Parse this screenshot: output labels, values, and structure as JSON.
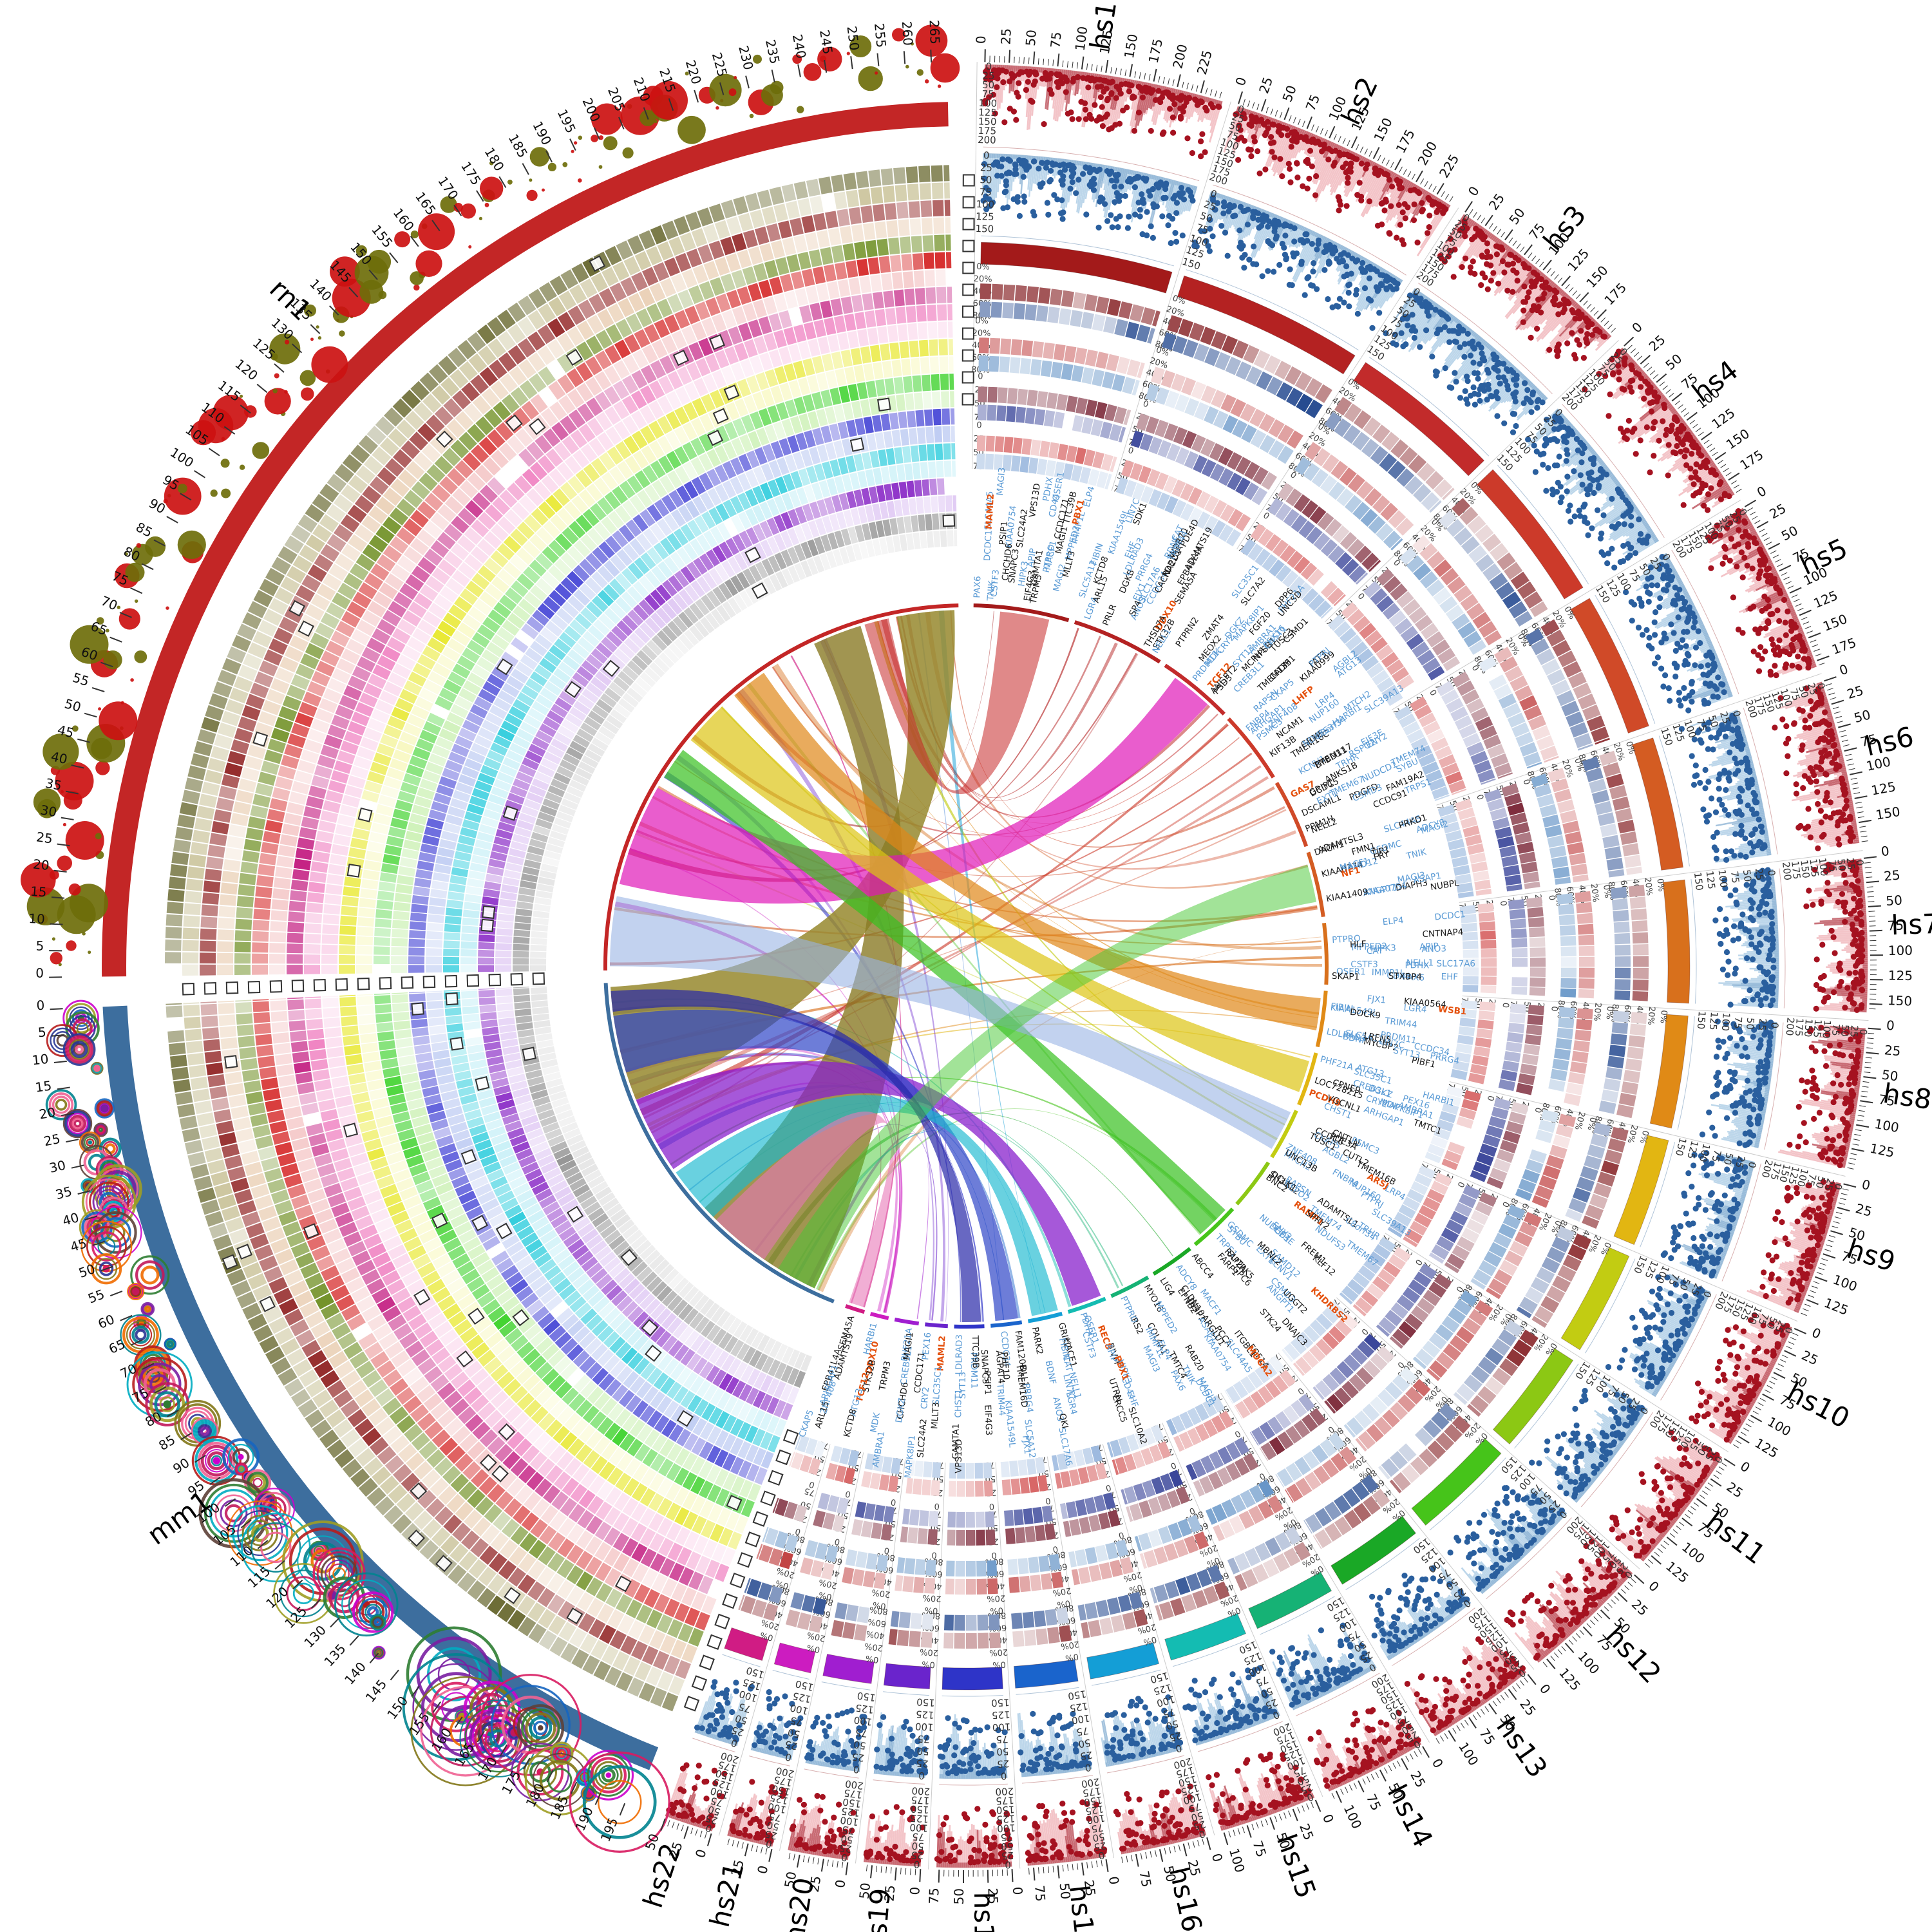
{
  "chart_data": {
    "type": "circos",
    "seed": 20,
    "ideograms": [
      {
        "id": "hs1",
        "label": "hs1",
        "group": "human",
        "length_mb": 249,
        "color": "#a31a1a"
      },
      {
        "id": "hs2",
        "label": "hs2",
        "group": "human",
        "length_mb": 243,
        "color": "#b42222"
      },
      {
        "id": "hs3",
        "label": "hs3",
        "group": "human",
        "length_mb": 198,
        "color": "#c22b2b"
      },
      {
        "id": "hs4",
        "label": "hs4",
        "group": "human",
        "length_mb": 191,
        "color": "#cc3a2a"
      },
      {
        "id": "hs5",
        "label": "hs5",
        "group": "human",
        "length_mb": 181,
        "color": "#d04a28"
      },
      {
        "id": "hs6",
        "label": "hs6",
        "group": "human",
        "length_mb": 171,
        "color": "#d45c22"
      },
      {
        "id": "hs7",
        "label": "hs7",
        "group": "human",
        "length_mb": 159,
        "color": "#d8701c"
      },
      {
        "id": "hs8",
        "label": "hs8",
        "group": "human",
        "length_mb": 146,
        "color": "#e08a16"
      },
      {
        "id": "hs9",
        "label": "hs9",
        "group": "human",
        "length_mb": 141,
        "color": "#e2b612"
      },
      {
        "id": "hs10",
        "label": "hs10",
        "group": "human",
        "length_mb": 136,
        "color": "#c2cc12"
      },
      {
        "id": "hs11",
        "label": "hs11",
        "group": "human",
        "length_mb": 135,
        "color": "#8cc814"
      },
      {
        "id": "hs12",
        "label": "hs12",
        "group": "human",
        "length_mb": 134,
        "color": "#46c41a"
      },
      {
        "id": "hs13",
        "label": "hs13",
        "group": "human",
        "length_mb": 115,
        "color": "#1aa826"
      },
      {
        "id": "hs14",
        "label": "hs14",
        "group": "human",
        "length_mb": 107,
        "color": "#16b275"
      },
      {
        "id": "hs15",
        "label": "hs15",
        "group": "human",
        "length_mb": 102,
        "color": "#14bcb2"
      },
      {
        "id": "hs16",
        "label": "hs16",
        "group": "human",
        "length_mb": 90,
        "color": "#149ed6"
      },
      {
        "id": "hs17",
        "label": "hs17",
        "group": "human",
        "length_mb": 81,
        "color": "#1a64cc"
      },
      {
        "id": "hs18",
        "label": "hs18",
        "group": "human",
        "length_mb": 78,
        "color": "#2e34c8"
      },
      {
        "id": "hs19",
        "label": "hs19",
        "group": "human",
        "length_mb": 59,
        "color": "#6a24cc"
      },
      {
        "id": "hs20",
        "label": "hs20",
        "group": "human",
        "length_mb": 63,
        "color": "#a01ed0"
      },
      {
        "id": "hs21",
        "label": "hs21",
        "group": "human",
        "length_mb": 48,
        "color": "#cc1cc0"
      },
      {
        "id": "hs22",
        "label": "hs22",
        "group": "human",
        "length_mb": 51,
        "color": "#d01c84"
      },
      {
        "id": "mm1",
        "label": "mm1",
        "group": "mouse",
        "length_mb": 197,
        "color": "#3d6e9e",
        "reversed": true
      },
      {
        "id": "rn1",
        "label": "rn1",
        "group": "rat",
        "length_mb": 268,
        "color": "#c32626"
      }
    ],
    "ticks": {
      "human_major_mb": 25,
      "human_minor_mb": 5,
      "rodent_major_mb": 5
    },
    "human_tracks": {
      "outer": {
        "dot_color": "#a51220",
        "hist_color": "#f3c4c8",
        "band_color": "#c05a64",
        "axis": [
          "0",
          "25",
          "50",
          "75",
          "100",
          "125",
          "150",
          "175",
          "200"
        ]
      },
      "inner": {
        "dot_color": "#2a5f9e",
        "hist_color": "#bcd6ea",
        "band_color": "#8fb4d4",
        "axis": [
          "0",
          "25",
          "50",
          "75",
          "100",
          "125",
          "150"
        ]
      },
      "percent_axis": [
        "0%",
        "20%",
        "40%",
        "60%",
        "80%"
      ],
      "value_axis": [
        "0",
        "25",
        "50",
        "75"
      ],
      "heat_row_colors": [
        "#7a0c10",
        "#123a86",
        "#c04040",
        "#5d8fc4",
        "#6d1022",
        "#25328f",
        "#d25050",
        "#8fb0da"
      ]
    },
    "rodent_tracks": {
      "bubble_colors": [
        "#6e6e0a",
        "#cc1111"
      ],
      "ring_set_colors": [
        "#7a1fa2",
        "#c2185b",
        "#2e7d32",
        "#827717",
        "#1565c0",
        "#00838f",
        "#ef6c00",
        "#d81b60",
        "#283593",
        "#b71c1c",
        "#9e9d24",
        "#f06292",
        "#5d4037",
        "#00acc1",
        "#cc00cc"
      ],
      "ring_palette": [
        "#5c5c1e",
        "#c9c298",
        "#8c1a1a",
        "#e9cdb1",
        "#6f8f23",
        "#d42222",
        "#f4c6c6",
        "#c2187e",
        "#ef7fc0",
        "#fad4ea",
        "#e6e61e",
        "#f8f8c2",
        "#34d021",
        "#caf0b2",
        "#2b2bd0",
        "#bccaf2",
        "#1fc9da",
        "#c2eef6",
        "#8522c4",
        "#dcc2f2",
        "#8f8f8f",
        "#e2e2e2"
      ]
    },
    "gene_labels": {
      "blue": [
        "MACF1",
        "KIAA0754",
        "SLC44A5",
        "MAGI3",
        "TNIK",
        "MAGI2",
        "PTPRO",
        "MPPED2",
        "IMMP1L",
        "ELP4",
        "PAX6",
        "DCDC1",
        "QSER1",
        "CSTF3",
        "HIPK3",
        "CD44",
        "PDHX",
        "APIP",
        "EHF",
        "CAT",
        "NELL1",
        "ANO3",
        "SLC17A6",
        "FIBIN",
        "BDNF",
        "LIN7C",
        "LGR4",
        "CCDC34",
        "PRRG4",
        "KIAA1549L",
        "SLC5A12",
        "FJX1",
        "TRIM44",
        "LDLRAD3",
        "PRDM11",
        "SYT13",
        "CHST1",
        "SLC35C1",
        "CRY2",
        "MAPK8IP1",
        "PEX16",
        "PHF21A",
        "CREB3L1",
        "DGKZ",
        "MDK",
        "AMBRA1",
        "HARBI1",
        "ATG13",
        "ARHGAP1",
        "ZNF408",
        "CKAP5",
        "LRP4",
        "MTCH2",
        "AGBL2",
        "FNBP4",
        "NUP160",
        "PTPRJ",
        "SLC39A13",
        "PSMC3",
        "RAPSN",
        "NDUFS3",
        "C8orf34",
        "TMEM67",
        "RSPO2",
        "EIF3E",
        "TMEM74",
        "TRHR",
        "NUDCD1",
        "ENY2",
        "SYBU",
        "KCNV1",
        "CSMD3",
        "TRPS1",
        "EXT1",
        "SAMD12",
        "ANGPT1",
        "GSDMC",
        "ASAP1",
        "ADCY8"
      ],
      "black": [
        "EIF4G3",
        "CAMTA1",
        "VPS13D",
        "TTC39B",
        "SNAPC3",
        "PSIP1",
        "CCDC171",
        "MLLT3",
        "SLC24A2",
        "TRPM3",
        "CHCHD6",
        "MAGI1",
        "STK32B",
        "KCTD8",
        "SEMA5A",
        "ADAMTS19",
        "EPB41L4A",
        "ARL15",
        "WDR70",
        "PDE4D",
        "PRLR",
        "CACNA2D1",
        "PDE10A",
        "SDK1",
        "THSD7A",
        "SP4",
        "DGKB",
        "MEOX2",
        "NPSR1",
        "DPP6",
        "PTPRN2",
        "CSMD1",
        "ANGPT2",
        "MCPH1",
        "TUSC3",
        "SLC7A2",
        "UNC5D",
        "PSD3",
        "ZMAT4",
        "FGF20",
        "KIF13B",
        "TMEM16C",
        "GRM5",
        "FAT3",
        "CADM1",
        "NCAM1",
        "TMEM135",
        "KIAA0999",
        "DCDC5",
        "PDGFD",
        "DSCAML1",
        "GRIP1",
        "ANKS1B",
        "NELL2",
        "TMEM117",
        "CCDC91",
        "FAM19A2",
        "PPM1H",
        "BTBD11",
        "KIAA0774",
        "DIAPH3",
        "DACH1",
        "FRY",
        "PRKD1",
        "NUBPL",
        "KIAA1409",
        "FMN1",
        "TJP1",
        "ADAMTSL3",
        "CNTNAP4",
        "SKAP1",
        "HLF",
        "STXBP4",
        "MYCBP2",
        "KIAA0564",
        "PIBF1",
        "DOCK9",
        "LRFN5",
        "TMTC1",
        "CPNE9",
        "LOC728215",
        "VGCNL1",
        "PDE3A",
        "CUTL2",
        "TMEM16B",
        "CCDC6",
        "UNC13B",
        "TUSC1",
        "CNTLN",
        "SH3GL2",
        "ADAMTSL1",
        "BNC2",
        "FREM1",
        "KLF12",
        "DCLK1",
        "SPRY2",
        "SLITRK5",
        "GPC6",
        "UGGT2",
        "DNAJC3",
        "FARP1",
        "STK24",
        "RAP2A",
        "MBNL2",
        "ABCC4",
        "CLDN10",
        "DZIP1",
        "PCCA",
        "ITGBL1",
        "FGF14",
        "EFNB2",
        "ARGLU1",
        "LIG4",
        "MYO16",
        "IRS2",
        "COL4A1",
        "RAB20",
        "TMTC4",
        "BIVM",
        "ERCC5",
        "SLC10A2",
        "UTRN",
        "GRIK2",
        "HACE1",
        "QKI",
        "PARK2",
        "AGPAT4",
        "DLL1",
        "FAM120B",
        "PHF10",
        "TMEM16D"
      ],
      "orange": [
        "PBX1",
        "MAML2",
        "DDX10",
        "TCF12",
        "LHFP",
        "GAS7",
        "NF1",
        "WSB1",
        "PCDH9",
        "ARSJ",
        "RAMP1",
        "KHDRBS2",
        "MDGA2",
        "REC8"
      ]
    },
    "links": {
      "filler_count": 60,
      "major": [
        {
          "from": "rn1",
          "from_mb": [
            238,
            266
          ],
          "to": "mm1",
          "to_mb": [
            2,
            58
          ],
          "color": "#97882e",
          "opacity": 0.85
        },
        {
          "from": "rn1",
          "from_mb": [
            196,
            220
          ],
          "to": "mm1",
          "to_mb": [
            120,
            186
          ],
          "color": "#8a7a26",
          "opacity": 0.8
        },
        {
          "from": "rn1",
          "from_mb": [
            42,
            92
          ],
          "to": "hs3",
          "to_mb": [
            40,
            150
          ],
          "color": "#e018b8",
          "opacity": 0.7
        },
        {
          "from": "rn1",
          "from_mb": [
            120,
            142
          ],
          "to": "hs9",
          "to_mb": [
            25,
            110
          ],
          "color": "#ddc414",
          "opacity": 0.7
        },
        {
          "from": "rn1",
          "from_mb": [
            150,
            168
          ],
          "to": "hs8",
          "to_mb": [
            20,
            105
          ],
          "color": "#e08818",
          "opacity": 0.7
        },
        {
          "from": "rn1",
          "from_mb": [
            98,
            114
          ],
          "to": "hs12",
          "to_mb": [
            15,
            105
          ],
          "color": "#38c020",
          "opacity": 0.7
        },
        {
          "from": "rn1",
          "from_mb": [
            2,
            36
          ],
          "to": "hs10",
          "to_mb": [
            10,
            118
          ],
          "color": "#9ab4e4",
          "opacity": 0.6
        },
        {
          "from": "rn1",
          "from_mb": [
            222,
            234
          ],
          "to": "hs1",
          "to_mb": [
            70,
            200
          ],
          "color": "#c62828",
          "opacity": 0.55
        },
        {
          "from": "mm1",
          "from_mb": [
            58,
            96
          ],
          "to": "hs15",
          "to_mb": [
            8,
            88
          ],
          "color": "#8820cc",
          "opacity": 0.75
        },
        {
          "from": "mm1",
          "from_mb": [
            16,
            44
          ],
          "to": "hs17",
          "to_mb": [
            8,
            68
          ],
          "color": "#2f46c8",
          "opacity": 0.7
        },
        {
          "from": "mm1",
          "from_mb": [
            98,
            126
          ],
          "to": "hs16",
          "to_mb": [
            8,
            78
          ],
          "color": "#18b8d0",
          "opacity": 0.65
        },
        {
          "from": "mm1",
          "from_mb": [
            128,
            158
          ],
          "to": "hs22",
          "to_mb": [
            4,
            46
          ],
          "color": "#e878b8",
          "opacity": 0.6
        },
        {
          "from": "mm1",
          "from_mb": [
            4,
            14
          ],
          "to": "hs18",
          "to_mb": [
            8,
            58
          ],
          "color": "#2828a8",
          "opacity": 0.7
        },
        {
          "from": "mm1",
          "from_mb": [
            166,
            186
          ],
          "to": "hs6",
          "to_mb": [
            30,
            130
          ],
          "color": "#46c832",
          "opacity": 0.5
        }
      ]
    }
  }
}
